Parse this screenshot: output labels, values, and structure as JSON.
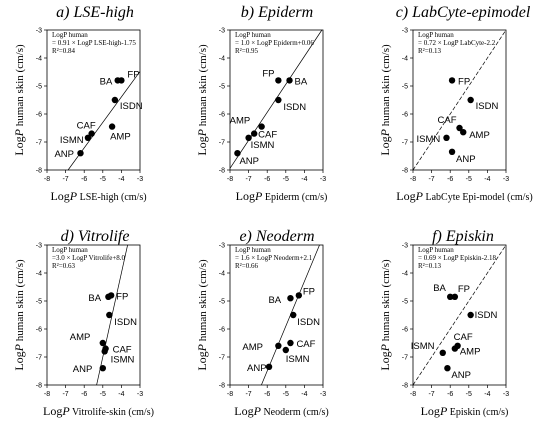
{
  "chart_data": [
    {
      "type": "scatter",
      "panel": "a",
      "title": "a) LSE-high",
      "xlabel": {
        "main": "Log",
        "italic": "P",
        "rest": " LSE-high (cm/s)"
      },
      "ylabel": {
        "main": "Log",
        "italic": "P",
        "rest": " human skin (cm/s)"
      },
      "xlim": [
        -8,
        -3
      ],
      "ylim": [
        -8,
        -3
      ],
      "xticks": [
        "-8",
        "-7",
        "-6",
        "-5",
        "-4",
        "-3"
      ],
      "yticks": [
        "-8",
        "-7",
        "-6",
        "-5",
        "-4",
        "-3"
      ],
      "equation": [
        "LogP human",
        "= 0.91 × LogP LSE-high-1.75",
        "R²=0.84"
      ],
      "line": {
        "style": "solid",
        "slope": 0.91,
        "intercept": -1.75
      },
      "points": [
        {
          "label": "FP",
          "x": -4.0,
          "y": -4.8
        },
        {
          "label": "BA",
          "x": -4.2,
          "y": -4.8
        },
        {
          "label": "ISDN",
          "x": -4.35,
          "y": -5.5
        },
        {
          "label": "AMP",
          "x": -4.5,
          "y": -6.45
        },
        {
          "label": "CAF",
          "x": -5.6,
          "y": -6.7
        },
        {
          "label": "ISMN",
          "x": -5.8,
          "y": -6.85
        },
        {
          "label": "ANP",
          "x": -6.2,
          "y": -7.4
        }
      ]
    },
    {
      "type": "scatter",
      "panel": "b",
      "title": "b) Epiderm",
      "xlabel": {
        "main": "Log",
        "italic": "P",
        "rest": " Epiderm (cm/s)"
      },
      "ylabel": {
        "main": "Log",
        "italic": "P",
        "rest": " human skin (cm/s)"
      },
      "xlim": [
        -8,
        -3
      ],
      "ylim": [
        -8,
        -3
      ],
      "xticks": [
        "-8",
        "-7",
        "-6",
        "-5",
        "-4",
        "-3"
      ],
      "yticks": [
        "-8",
        "-7",
        "-6",
        "-5",
        "-4",
        "-3"
      ],
      "equation": [
        "LogP human",
        "= 1.0 × LogP Epiderm+0.06",
        "R²=0.95"
      ],
      "line": {
        "style": "solid",
        "slope": 1.0,
        "intercept": 0.06
      },
      "points": [
        {
          "label": "FP",
          "x": -5.4,
          "y": -4.8
        },
        {
          "label": "BA",
          "x": -4.8,
          "y": -4.8
        },
        {
          "label": "ISDN",
          "x": -5.4,
          "y": -5.5
        },
        {
          "label": "AMP",
          "x": -6.3,
          "y": -6.45
        },
        {
          "label": "CAF",
          "x": -6.7,
          "y": -6.7
        },
        {
          "label": "ISMN",
          "x": -7.0,
          "y": -6.85
        },
        {
          "label": "ANP",
          "x": -7.6,
          "y": -7.4
        }
      ]
    },
    {
      "type": "scatter",
      "panel": "c",
      "title": "c) LabCyte-epimodel",
      "xlabel": {
        "main": "Log",
        "italic": "P",
        "rest": " LabCyte Epi-model (cm/s)"
      },
      "ylabel": {
        "main": "Log",
        "italic": "P",
        "rest": " human skin (cm/s)"
      },
      "xlim": [
        -8,
        -3
      ],
      "ylim": [
        -8,
        -3
      ],
      "xticks": [
        "-8",
        "-7",
        "-6",
        "-5",
        "-4",
        "-3"
      ],
      "yticks": [
        "-8",
        "-7",
        "-6",
        "-5",
        "-4",
        "-3"
      ],
      "equation": [
        "LogP human",
        "= 0.72 × LogP LabCyte-2.2",
        "R²=0.13"
      ],
      "line": {
        "style": "dashed",
        "slope": 1.0,
        "intercept": 0.0
      },
      "points": [
        {
          "label": "FP",
          "x": -5.9,
          "y": -4.8
        },
        {
          "label": "ISDN",
          "x": -4.9,
          "y": -5.5
        },
        {
          "label": "CAF",
          "x": -5.5,
          "y": -6.5
        },
        {
          "label": "AMP",
          "x": -5.3,
          "y": -6.65
        },
        {
          "label": "ISMN",
          "x": -6.2,
          "y": -6.85
        },
        {
          "label": "ANP",
          "x": -5.9,
          "y": -7.35
        }
      ]
    },
    {
      "type": "scatter",
      "panel": "d",
      "title": "d) Vitrolife",
      "xlabel": {
        "main": "Log",
        "italic": "P",
        "rest": " Vitrolife-skin (cm/s)"
      },
      "ylabel": {
        "main": "Log",
        "italic": "P",
        "rest": " human skin (cm/s)"
      },
      "xlim": [
        -8,
        -3
      ],
      "ylim": [
        -8,
        -3
      ],
      "xticks": [
        "-8",
        "-7",
        "-6",
        "-5",
        "-4",
        "-3"
      ],
      "yticks": [
        "-8",
        "-7",
        "-6",
        "-5",
        "-4",
        "-3"
      ],
      "equation": [
        "LogP human",
        "=3.0 × LogP Vitrolife+8.0",
        "R²=0.63"
      ],
      "line": {
        "style": "solid",
        "slope": 3.0,
        "intercept": 8.0
      },
      "points": [
        {
          "label": "FP",
          "x": -4.55,
          "y": -4.8
        },
        {
          "label": "BA",
          "x": -4.7,
          "y": -4.85
        },
        {
          "label": "ISDN",
          "x": -4.65,
          "y": -5.5
        },
        {
          "label": "AMP",
          "x": -5.0,
          "y": -6.5
        },
        {
          "label": "CAF",
          "x": -4.85,
          "y": -6.7
        },
        {
          "label": "ISMN",
          "x": -4.9,
          "y": -6.8
        },
        {
          "label": "ANP",
          "x": -5.0,
          "y": -7.4
        }
      ]
    },
    {
      "type": "scatter",
      "panel": "e",
      "title": "e) Neoderm",
      "xlabel": {
        "main": "Log",
        "italic": "P",
        "rest": " Neoderm (cm/s)"
      },
      "ylabel": {
        "main": "Log",
        "italic": "P",
        "rest": " human skin (cm/s)"
      },
      "xlim": [
        -8,
        -3
      ],
      "ylim": [
        -8,
        -3
      ],
      "xticks": [
        "-8",
        "-7",
        "-6",
        "-5",
        "-4",
        "-3"
      ],
      "yticks": [
        "-8",
        "-7",
        "-6",
        "-5",
        "-4",
        "-3"
      ],
      "equation": [
        "LogP human",
        "= 1.6 × LogP Neoderm+2.1",
        "R²=0.66"
      ],
      "line": {
        "style": "solid",
        "slope": 1.6,
        "intercept": 2.1
      },
      "points": [
        {
          "label": "FP",
          "x": -4.3,
          "y": -4.8
        },
        {
          "label": "BA",
          "x": -4.75,
          "y": -4.9
        },
        {
          "label": "ISDN",
          "x": -4.6,
          "y": -5.5
        },
        {
          "label": "AMP",
          "x": -5.4,
          "y": -6.6
        },
        {
          "label": "CAF",
          "x": -4.75,
          "y": -6.5
        },
        {
          "label": "ISMN",
          "x": -5.0,
          "y": -6.75
        },
        {
          "label": "ANP",
          "x": -5.9,
          "y": -7.35
        }
      ]
    },
    {
      "type": "scatter",
      "panel": "f",
      "title": "f) Episkin",
      "xlabel": {
        "main": "Log",
        "italic": "P",
        "rest": " Episkin (cm/s)"
      },
      "ylabel": {
        "main": "Log",
        "italic": "P",
        "rest": " human skin (cm/s)"
      },
      "xlim": [
        -8,
        -3
      ],
      "ylim": [
        -8,
        -3
      ],
      "xticks": [
        "-8",
        "-7",
        "-6",
        "-5",
        "-4",
        "-3"
      ],
      "yticks": [
        "-8",
        "-7",
        "-6",
        "-5",
        "-4",
        "-3"
      ],
      "equation": [
        "LogP human",
        "= 0.69 × LogP Episkin-2.18",
        "R²=0.13"
      ],
      "line": {
        "style": "dashed",
        "slope": 1.0,
        "intercept": 0.0
      },
      "points": [
        {
          "label": "BA",
          "x": -6.0,
          "y": -4.85
        },
        {
          "label": "FP",
          "x": -5.75,
          "y": -4.85
        },
        {
          "label": "ISDN",
          "x": -4.9,
          "y": -5.5
        },
        {
          "label": "CAF",
          "x": -5.6,
          "y": -6.6
        },
        {
          "label": "AMP",
          "x": -5.75,
          "y": -6.7
        },
        {
          "label": "ISMN",
          "x": -6.4,
          "y": -6.85
        },
        {
          "label": "ANP",
          "x": -6.15,
          "y": -7.4
        }
      ]
    }
  ]
}
